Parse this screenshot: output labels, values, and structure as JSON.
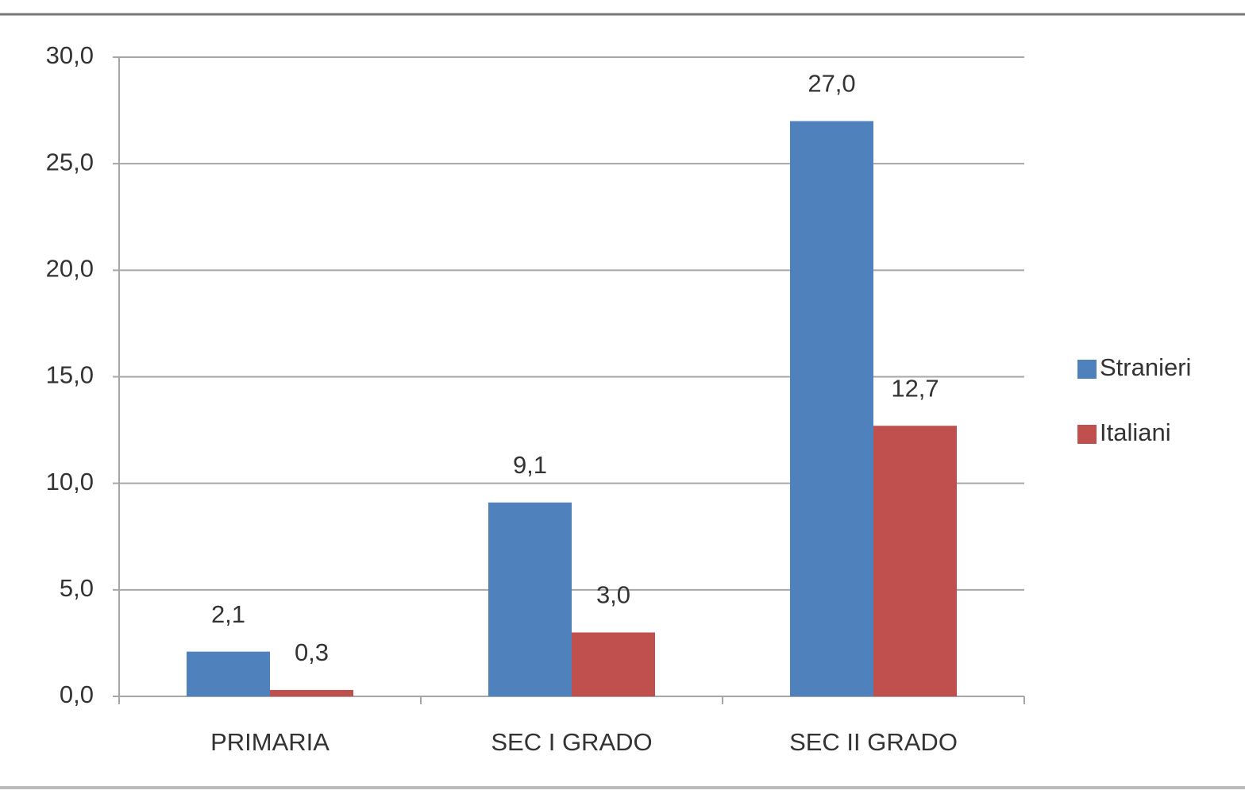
{
  "chart_data": {
    "type": "bar",
    "categories": [
      "PRIMARIA",
      "SEC I GRADO",
      "SEC II GRADO"
    ],
    "series": [
      {
        "name": "Stranieri",
        "color": "#4f81bd",
        "values": [
          2.1,
          9.1,
          27.0
        ],
        "value_labels": [
          "2,1",
          "9,1",
          "27,0"
        ]
      },
      {
        "name": "Italiani",
        "color": "#c0504d",
        "values": [
          0.3,
          3.0,
          12.7
        ],
        "value_labels": [
          "0,3",
          "3,0",
          "12,7"
        ]
      }
    ],
    "ylim": [
      0,
      30
    ],
    "yticks": [
      {
        "value": 0,
        "label": "0,0"
      },
      {
        "value": 5,
        "label": "5,0"
      },
      {
        "value": 10,
        "label": "10,0"
      },
      {
        "value": 15,
        "label": "15,0"
      },
      {
        "value": 20,
        "label": "20,0"
      },
      {
        "value": 25,
        "label": "25,0"
      },
      {
        "value": 30,
        "label": "30,0"
      }
    ],
    "grid": true,
    "legend": "right"
  }
}
